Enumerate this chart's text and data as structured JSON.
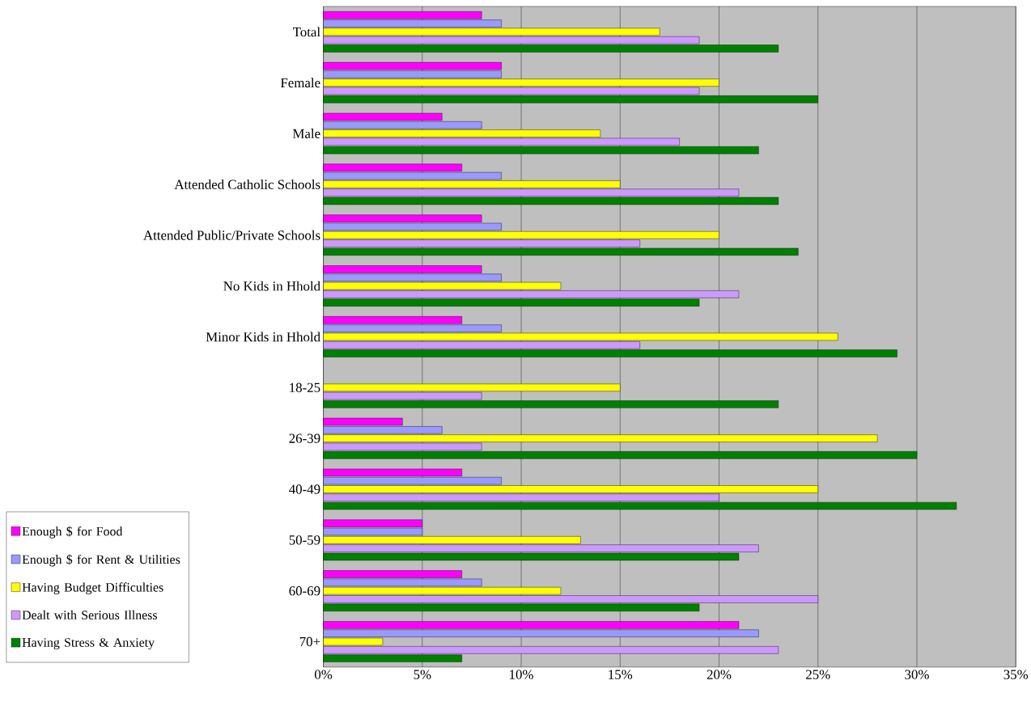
{
  "chart_data": {
    "type": "bar",
    "orientation": "horizontal",
    "categories": [
      "Total",
      "Female",
      "Male",
      "Attended Catholic Schools",
      "Attended Public/Private Schools",
      "No Kids in Hhold",
      "Minor Kids in Hhold",
      "18-25",
      "26-39",
      "40-49",
      "50-59",
      "60-69",
      "70+"
    ],
    "series": [
      {
        "name": "Enough $ for Food",
        "color": "#ff00ff",
        "values": [
          8,
          9,
          6,
          7,
          8,
          8,
          7,
          null,
          4,
          7,
          5,
          7,
          21
        ]
      },
      {
        "name": "Enough $ for Rent & Utilities",
        "color": "#9999ff",
        "values": [
          9,
          9,
          8,
          9,
          9,
          9,
          9,
          null,
          6,
          9,
          5,
          8,
          22
        ]
      },
      {
        "name": "Having Budget Difficulties",
        "color": "#ffff00",
        "values": [
          17,
          20,
          14,
          15,
          20,
          12,
          26,
          15,
          28,
          25,
          13,
          12,
          3
        ]
      },
      {
        "name": "Dealt with Serious Illness",
        "color": "#cc99ff",
        "values": [
          19,
          19,
          18,
          21,
          16,
          21,
          16,
          8,
          8,
          20,
          22,
          25,
          23
        ]
      },
      {
        "name": "Having Stress & Anxiety",
        "color": "#008000",
        "values": [
          23,
          25,
          22,
          23,
          24,
          19,
          29,
          23,
          30,
          32,
          21,
          19,
          7
        ]
      }
    ],
    "xlim": [
      0,
      35
    ],
    "xticks": [
      {
        "value": 0,
        "label": "0%"
      },
      {
        "value": 5,
        "label": "5%"
      },
      {
        "value": 10,
        "label": "10%"
      },
      {
        "value": 15,
        "label": "15%"
      },
      {
        "value": 20,
        "label": "20%"
      },
      {
        "value": 25,
        "label": "25%"
      },
      {
        "value": 30,
        "label": "30%"
      },
      {
        "value": 35,
        "label": "35%"
      }
    ],
    "grid": "x",
    "legend": "bottom left"
  }
}
